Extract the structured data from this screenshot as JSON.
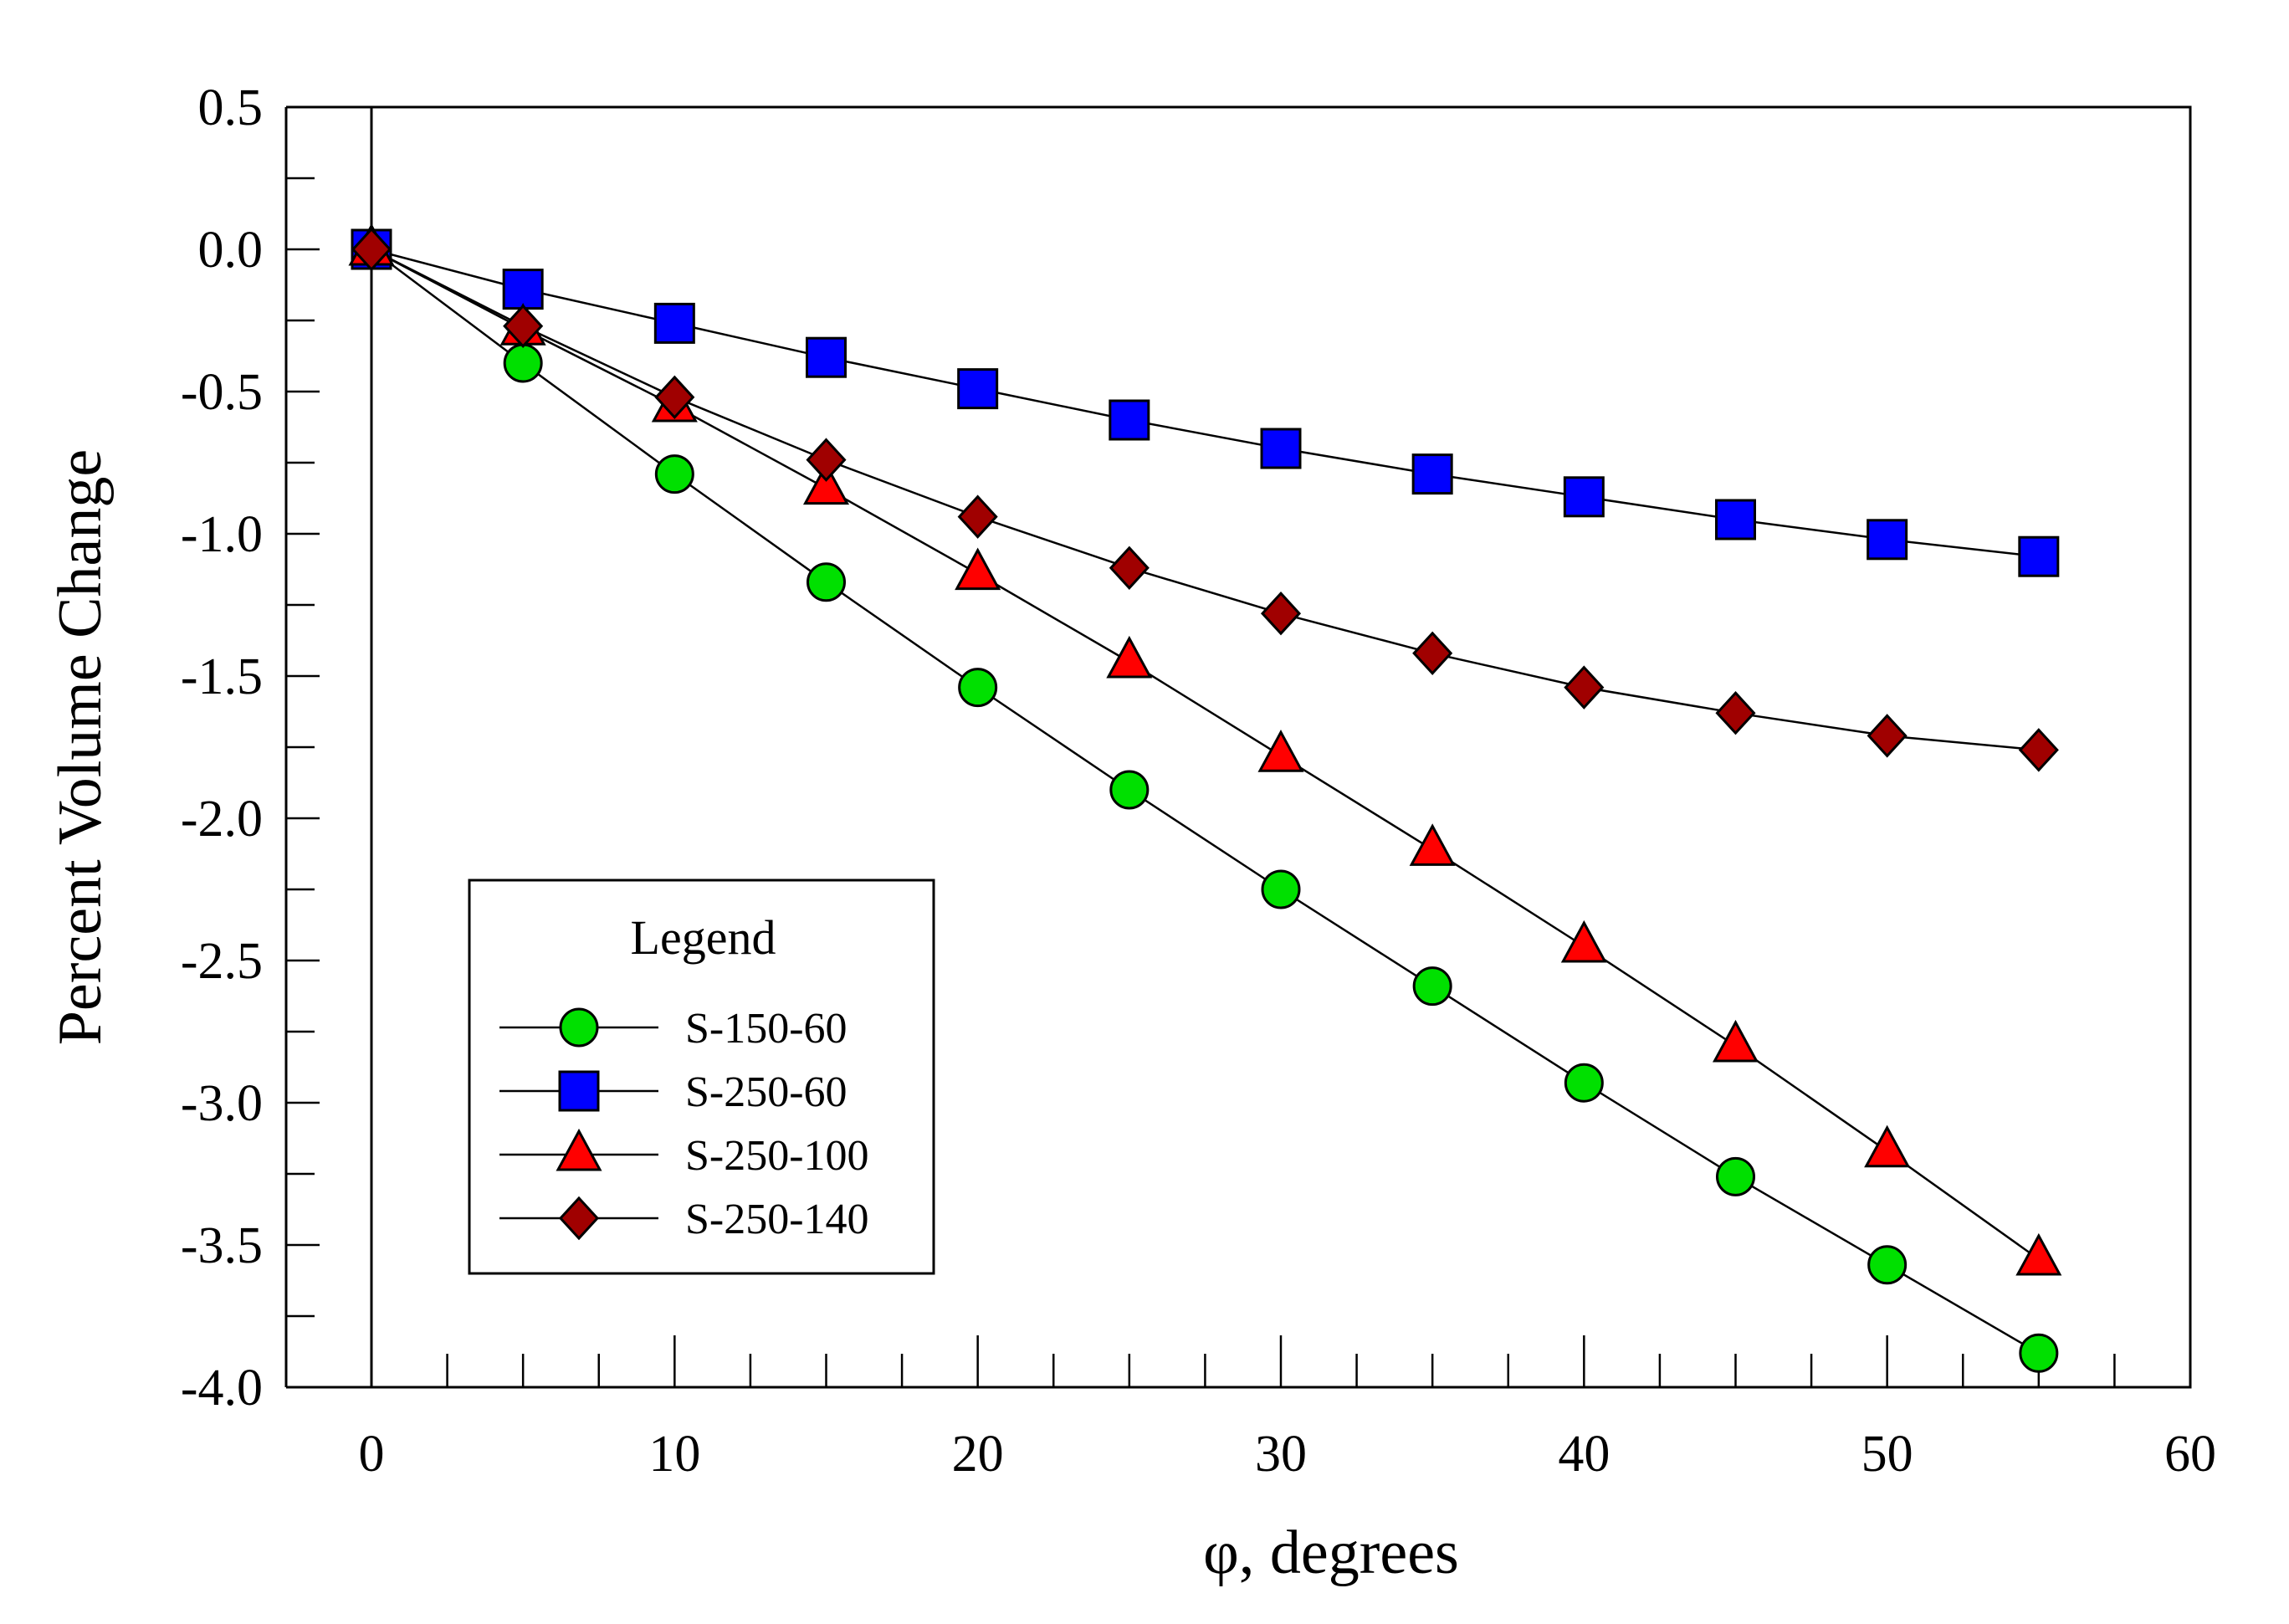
{
  "chart_data": {
    "type": "line",
    "title": "",
    "xlabel": "φ, degrees",
    "ylabel": "Percent Volume Change",
    "xlim": [
      0,
      60
    ],
    "ylim": [
      -4.0,
      0.5
    ],
    "x_ticks": [
      0,
      10,
      20,
      30,
      40,
      50,
      60
    ],
    "x_tick_labels": [
      "0",
      "10",
      "20",
      "30",
      "40",
      "50",
      "60"
    ],
    "y_ticks": [
      0.5,
      0.0,
      -0.5,
      -1.0,
      -1.5,
      -2.0,
      -2.5,
      -3.0,
      -3.5,
      -4.0
    ],
    "y_tick_labels": [
      "0.5",
      "0.0",
      "-0.5",
      "-1.0",
      "-1.5",
      "-2.0",
      "-2.5",
      "-3.0",
      "-3.5",
      "-4.0"
    ],
    "legend_title": "Legend",
    "legend_position": "bottom-left",
    "grid": false,
    "x": [
      0,
      5,
      10,
      15,
      20,
      25,
      30,
      35,
      40,
      45,
      50,
      55
    ],
    "series": [
      {
        "name": "S-150-60",
        "marker": "circle",
        "color": "#00e000",
        "values": [
          0.0,
          -0.4,
          -0.79,
          -1.17,
          -1.54,
          -1.9,
          -2.25,
          -2.59,
          -2.93,
          -3.26,
          -3.57,
          -3.88
        ]
      },
      {
        "name": "S-250-60",
        "marker": "square",
        "color": "#0000ff",
        "values": [
          0.0,
          -0.14,
          -0.26,
          -0.38,
          -0.49,
          -0.6,
          -0.7,
          -0.79,
          -0.87,
          -0.95,
          -1.02,
          -1.08
        ]
      },
      {
        "name": "S-250-100",
        "marker": "triangle",
        "color": "#ff0000",
        "values": [
          0.0,
          -0.28,
          -0.55,
          -0.84,
          -1.14,
          -1.45,
          -1.78,
          -2.11,
          -2.45,
          -2.8,
          -3.17,
          -3.55
        ]
      },
      {
        "name": "S-250-140",
        "marker": "diamond",
        "color": "#a00000",
        "values": [
          0.0,
          -0.27,
          -0.52,
          -0.74,
          -0.94,
          -1.12,
          -1.28,
          -1.42,
          -1.54,
          -1.63,
          -1.71,
          -1.76
        ]
      }
    ]
  }
}
